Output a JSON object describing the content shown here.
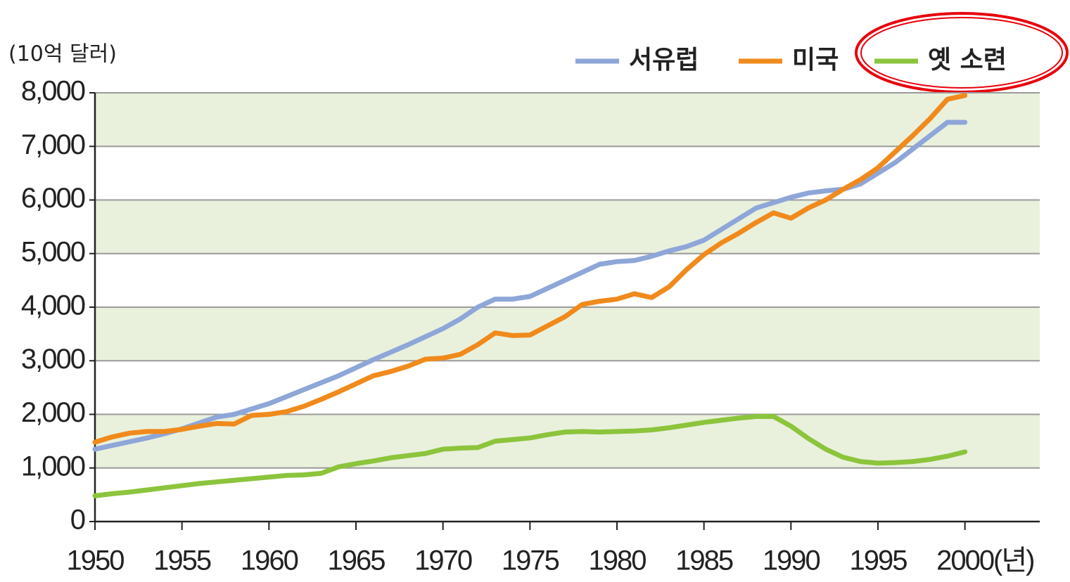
{
  "chart_data": {
    "type": "line",
    "y_unit_label": "(10억 달러)",
    "x_unit_label": "(년)",
    "x": [
      1950,
      1951,
      1952,
      1953,
      1954,
      1955,
      1956,
      1957,
      1958,
      1959,
      1960,
      1961,
      1962,
      1963,
      1964,
      1965,
      1966,
      1967,
      1968,
      1969,
      1970,
      1971,
      1972,
      1973,
      1974,
      1975,
      1976,
      1977,
      1978,
      1979,
      1980,
      1981,
      1982,
      1983,
      1984,
      1985,
      1986,
      1987,
      1988,
      1989,
      1990,
      1991,
      1992,
      1993,
      1994,
      1995,
      1996,
      1997,
      1998,
      1999,
      2000
    ],
    "series": [
      {
        "name": "서유럽",
        "color": "#8ea6d8",
        "values": [
          1350,
          1420,
          1490,
          1560,
          1640,
          1730,
          1840,
          1950,
          2000,
          2100,
          2200,
          2330,
          2460,
          2590,
          2720,
          2870,
          3020,
          3160,
          3300,
          3450,
          3600,
          3780,
          4000,
          4150,
          4150,
          4200,
          4350,
          4500,
          4650,
          4800,
          4850,
          4870,
          4950,
          5050,
          5130,
          5250,
          5450,
          5650,
          5850,
          5950,
          6050,
          6130,
          6170,
          6200,
          6300,
          6500,
          6700,
          6950,
          7200,
          7450,
          7450
        ]
      },
      {
        "name": "미국",
        "color": "#f08a1c",
        "values": [
          1480,
          1580,
          1650,
          1680,
          1680,
          1720,
          1780,
          1830,
          1820,
          1980,
          2000,
          2050,
          2150,
          2280,
          2420,
          2570,
          2720,
          2800,
          2900,
          3030,
          3050,
          3120,
          3300,
          3520,
          3470,
          3480,
          3650,
          3820,
          4050,
          4110,
          4150,
          4250,
          4180,
          4380,
          4700,
          4980,
          5200,
          5380,
          5580,
          5760,
          5660,
          5850,
          6000,
          6200,
          6380,
          6600,
          6900,
          7200,
          7520,
          7880,
          7950
        ]
      },
      {
        "name": "옛 소련",
        "color": "#8cc43c",
        "values": [
          480,
          520,
          550,
          590,
          630,
          670,
          710,
          740,
          770,
          800,
          830,
          860,
          870,
          900,
          1020,
          1080,
          1130,
          1190,
          1230,
          1270,
          1350,
          1370,
          1380,
          1500,
          1530,
          1560,
          1620,
          1670,
          1680,
          1670,
          1680,
          1690,
          1710,
          1750,
          1800,
          1850,
          1890,
          1930,
          1960,
          1960,
          1780,
          1550,
          1350,
          1200,
          1120,
          1090,
          1100,
          1120,
          1160,
          1220,
          1300
        ]
      }
    ],
    "xlim": [
      1950,
      2004.3
    ],
    "xticks": [
      1950,
      1955,
      1960,
      1965,
      1970,
      1975,
      1980,
      1985,
      1990,
      1995,
      2000
    ],
    "ylim": [
      0,
      8000
    ],
    "yticks": [
      0,
      {
        "value": 1000,
        "label": "1,000"
      },
      {
        "value": 2000,
        "label": "2,000"
      },
      {
        "value": 3000,
        "label": "3,000"
      },
      {
        "value": 4000,
        "label": "4,000"
      },
      {
        "value": 5000,
        "label": "5,000"
      },
      {
        "value": 6000,
        "label": "6,000"
      },
      {
        "value": 7000,
        "label": "7,000"
      },
      {
        "value": 8000,
        "label": "8,000"
      }
    ],
    "grid": true
  }
}
